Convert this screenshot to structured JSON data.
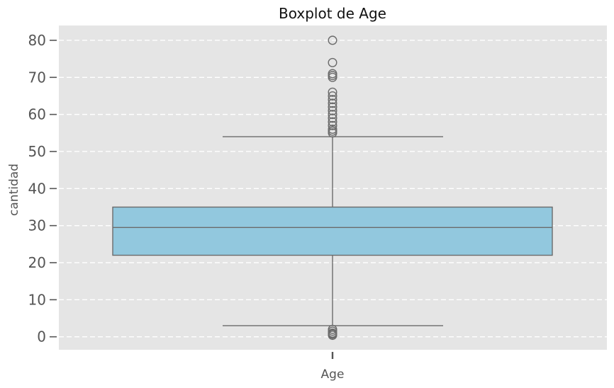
{
  "chart_data": {
    "type": "boxplot",
    "title": "Boxplot de Age",
    "xlabel": "",
    "ylabel": "cantidad",
    "categories": [
      "Age"
    ],
    "ylim": [
      -3.5,
      84
    ],
    "yticks": [
      0,
      10,
      20,
      30,
      40,
      50,
      60,
      70,
      80
    ],
    "grid": true,
    "box": {
      "whisker_low": 3,
      "q1": 22,
      "median": 29.5,
      "q3": 35,
      "whisker_high": 54
    },
    "outliers": [
      0.4,
      0.7,
      0.9,
      1.0,
      1.5,
      2.0,
      55.0,
      55.5,
      56.0,
      57.0,
      58.0,
      59.0,
      60.0,
      61.0,
      62.0,
      63.0,
      64.0,
      65.0,
      66.0,
      70.0,
      70.5,
      71.0,
      74.0,
      80.0
    ],
    "colors": {
      "box_fill": "#92c8de",
      "line": "#6b6b6b",
      "plot_bg": "#e5e5e5",
      "grid": "#ffffff"
    }
  }
}
